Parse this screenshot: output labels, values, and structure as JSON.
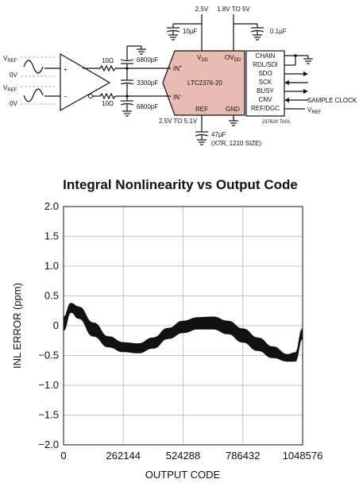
{
  "schematic": {
    "supply_25v": "2.5V",
    "supply_io": "1.8V TO 5V",
    "cap_vdd": "10µF",
    "cap_ovdd": "0.1µF",
    "vref_in_top": "V",
    "vref_in_top_sub": "REF",
    "zero_top": "0V",
    "vref_in_bot": "V",
    "vref_in_bot_sub": "REF",
    "zero_bot": "0V",
    "res_top": "10Ω",
    "res_bot": "10Ω",
    "cap_top": "6800pF",
    "cap_mid": "3300pF",
    "cap_bot": "6800pF",
    "amp_plus": "+",
    "amp_minus": "−",
    "chip_name": "LTC2376-20",
    "pin_vdd": "V",
    "pin_vdd_sub": "DD",
    "pin_ovdd": "OV",
    "pin_ovdd_sub": "DD",
    "pin_inp": "IN",
    "pin_inp_sup": "+",
    "pin_inm": "IN",
    "pin_inm_sup": "−",
    "pin_ref": "REF",
    "pin_gnd": "GND",
    "io_pins": [
      "CHAIN",
      "RDL/SDI",
      "SDO",
      "SCK",
      "BUSY",
      "CNV",
      "REF/DGC"
    ],
    "sample_clock": "SAMPLE CLOCK",
    "vref_out": "V",
    "vref_out_sub": "REF",
    "ref_range": "2.5V TO 5.1V",
    "ref_cap": "47µF",
    "ref_cap_note": "(X7R, 1210 SIZE)",
    "figure_id": "237620 TA01"
  },
  "colors": {
    "chip_fill": "#e8bcb3",
    "band": "#111111"
  },
  "chart_data": {
    "type": "area",
    "title": "Integral Nonlinearity vs Output Code",
    "xlabel": "OUTPUT CODE",
    "ylabel": "INL ERROR (ppm)",
    "xlim": [
      0,
      1048576
    ],
    "ylim": [
      -2.0,
      2.0
    ],
    "x_ticks": [
      0,
      262144,
      524288,
      786432,
      1048576
    ],
    "y_ticks": [
      "2.0",
      "1.5",
      "1.0",
      "0.5",
      "0",
      "−0.5",
      "−1.0",
      "−1.5",
      "−2.0"
    ],
    "y_tick_values": [
      2.0,
      1.5,
      1.0,
      0.5,
      0,
      -0.5,
      -1.0,
      -1.5,
      -2.0
    ],
    "grid": true,
    "series": [
      {
        "x": [
          0,
          32768,
          65536,
          131072,
          196608,
          262144,
          327680,
          393216,
          458752,
          524288,
          589824,
          655360,
          720896,
          786432,
          851968,
          917504,
          983040,
          1015808,
          1048576
        ],
        "upper": [
          0.15,
          0.38,
          0.32,
          0.05,
          -0.18,
          -0.28,
          -0.3,
          -0.2,
          -0.04,
          0.08,
          0.14,
          0.15,
          0.08,
          -0.05,
          -0.2,
          -0.35,
          -0.48,
          -0.45,
          -0.05
        ],
        "lower": [
          -0.08,
          0.22,
          0.12,
          -0.18,
          -0.36,
          -0.44,
          -0.46,
          -0.38,
          -0.22,
          -0.12,
          -0.06,
          -0.06,
          -0.14,
          -0.28,
          -0.42,
          -0.54,
          -0.6,
          -0.6,
          -0.22
        ]
      }
    ]
  }
}
